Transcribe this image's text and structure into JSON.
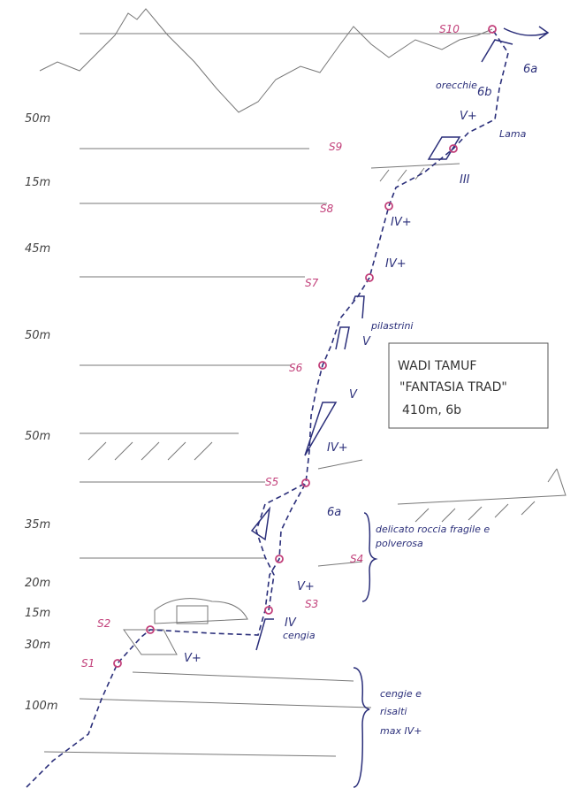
{
  "title_box": {
    "lines": [
      "WADI TAMUF",
      "\"FANTASIA TRAD\"",
      "410m, 6b"
    ]
  },
  "pitch_lengths": [
    "50m",
    "15m",
    "45m",
    "50m",
    "50m",
    "35m",
    "20m",
    "15m",
    "30m",
    "100m"
  ],
  "belays": [
    "S10",
    "S9",
    "S8",
    "S7",
    "S6",
    "S5",
    "S4",
    "S3",
    "S2",
    "S1"
  ],
  "grades": [
    "6a",
    "6b",
    "V+",
    "III",
    "IV+",
    "IV+",
    "V",
    "V",
    "IV+",
    "6a",
    "V+",
    "IV",
    "V+"
  ],
  "notes": {
    "ears": "orecchie",
    "flake": "Lama",
    "pillars": "pilastrini",
    "fragile": [
      "delicato roccia fragile e",
      "polverosa"
    ],
    "ledge": "cengia",
    "ledges": [
      "cengie e",
      "risalti",
      "max IV+"
    ]
  }
}
